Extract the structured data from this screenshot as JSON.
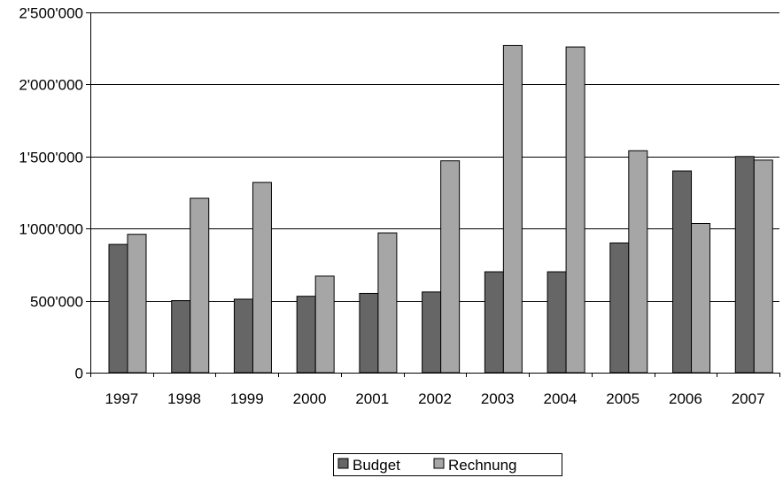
{
  "chart_data": {
    "type": "bar",
    "categories": [
      "1997",
      "1998",
      "1999",
      "2000",
      "2001",
      "2002",
      "2003",
      "2004",
      "2005",
      "2006",
      "2007"
    ],
    "series": [
      {
        "name": "Budget",
        "color": "#666666",
        "values": [
          890000,
          500000,
          510000,
          530000,
          550000,
          560000,
          700000,
          700000,
          900000,
          1400000,
          1500000
        ]
      },
      {
        "name": "Rechnung",
        "color": "#a6a6a6",
        "values": [
          960000,
          1210000,
          1320000,
          670000,
          970000,
          1470000,
          2270000,
          2260000,
          1540000,
          1035000,
          1475000
        ]
      }
    ],
    "ylim": [
      0,
      2500000
    ],
    "yticks": [
      0,
      500000,
      1000000,
      1500000,
      2000000,
      2500000
    ],
    "ytick_labels": [
      "0",
      "500'000",
      "1'000'000",
      "1'500'000",
      "2'000'000",
      "2'500'000"
    ],
    "grid": true,
    "legend": "bottom-center",
    "title": "",
    "xlabel": "",
    "ylabel": ""
  }
}
